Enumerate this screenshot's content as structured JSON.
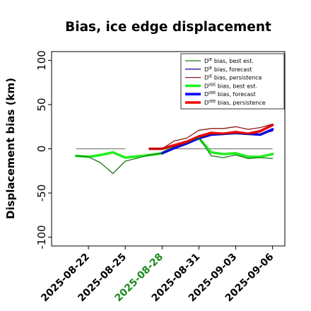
{
  "chart_data": {
    "type": "line",
    "title": "Bias, ice edge displacement",
    "ylabel": "Displacement bias (km)",
    "xlabel": "",
    "ylim": [
      -110,
      110
    ],
    "yticks": [
      -100,
      -50,
      0,
      50,
      100
    ],
    "xlim": [
      "2025-08-19",
      "2025-09-07"
    ],
    "xticks": [
      {
        "date": "2025-08-22",
        "label": "2025-08-22",
        "color": "#000000"
      },
      {
        "date": "2025-08-25",
        "label": "2025-08-25",
        "color": "#000000"
      },
      {
        "date": "2025-08-28",
        "label": "2025-08-28",
        "color": "#1a8a1a"
      },
      {
        "date": "2025-08-31",
        "label": "2025-08-31",
        "color": "#000000"
      },
      {
        "date": "2025-09-03",
        "label": "2025-09-03",
        "color": "#000000"
      },
      {
        "date": "2025-09-06",
        "label": "2025-09-06",
        "color": "#000000"
      }
    ],
    "legend_placement": "top-right",
    "reference_lines": [
      {
        "from": "2025-08-21",
        "to": "2025-08-25",
        "y": 0,
        "color": "#808080"
      },
      {
        "from": "2025-08-28",
        "to": "2025-09-06",
        "y": 0,
        "color": "#808080"
      }
    ],
    "connector": {
      "from": [
        "2025-08-25",
        -14
      ],
      "to": [
        "2025-08-27",
        -7
      ],
      "color": "#7a9a7a"
    },
    "series": [
      {
        "name": "D^IE bias, best est.",
        "legend_main": "D",
        "legend_sup": "IE",
        "legend_rest": " bias, best est.",
        "color": "#1a7a1a",
        "width": 1.3,
        "x": [
          "2025-08-21",
          "2025-08-22",
          "2025-08-23",
          "2025-08-24",
          "2025-08-25",
          "2025-08-27",
          "2025-08-28",
          "2025-08-29",
          "2025-08-30",
          "2025-08-31",
          "2025-09-01",
          "2025-09-02",
          "2025-09-03",
          "2025-09-04",
          "2025-09-05",
          "2025-09-06"
        ],
        "y": [
          -8,
          -9,
          -16,
          -28,
          -14,
          -7,
          -5,
          2,
          6,
          13,
          -8,
          -10,
          -7,
          -11,
          -10,
          -11
        ]
      },
      {
        "name": "D^IE bias, forecast",
        "legend_main": "D",
        "legend_sup": "IE",
        "legend_rest": " bias, forecast",
        "color": "#1a1aa0",
        "width": 1.3,
        "x": [
          "2025-08-28",
          "2025-08-29",
          "2025-08-30",
          "2025-08-31",
          "2025-09-01",
          "2025-09-02",
          "2025-09-03",
          "2025-09-04",
          "2025-09-05",
          "2025-09-06"
        ],
        "y": [
          -5,
          2,
          6,
          12,
          16,
          16,
          17,
          16,
          17,
          20
        ]
      },
      {
        "name": "D^IE bias, persistence",
        "legend_main": "D",
        "legend_sup": "IE",
        "legend_rest": " bias, persistence",
        "color": "#8b1a1a",
        "width": 1.3,
        "x": [
          "2025-08-27",
          "2025-08-28",
          "2025-08-29",
          "2025-08-30",
          "2025-08-31",
          "2025-09-01",
          "2025-09-02",
          "2025-09-03",
          "2025-09-04",
          "2025-09-05",
          "2025-09-06"
        ],
        "y": [
          0,
          0,
          9,
          12,
          21,
          23,
          23,
          25,
          22,
          24,
          28
        ]
      },
      {
        "name": "D^IIEE bias, best est.",
        "legend_main": "D",
        "legend_sup": "IIEE",
        "legend_rest": " bias, best est.",
        "color": "#22ee22",
        "width": 3.6,
        "x": [
          "2025-08-21",
          "2025-08-22",
          "2025-08-23",
          "2025-08-24",
          "2025-08-25",
          "2025-08-27",
          "2025-08-28",
          "2025-08-29",
          "2025-08-30",
          "2025-08-31",
          "2025-09-01",
          "2025-09-02",
          "2025-09-03",
          "2025-09-04",
          "2025-09-05",
          "2025-09-06"
        ],
        "y": [
          -8,
          -9,
          -7,
          -4,
          -10,
          -7,
          -5,
          3,
          7,
          12,
          -4,
          -6,
          -5,
          -9,
          -9,
          -6
        ]
      },
      {
        "name": "D^IIEE bias, forecast",
        "legend_main": "D",
        "legend_sup": "IIEE",
        "legend_rest": " bias, forecast",
        "color": "#0000ff",
        "width": 3.6,
        "x": [
          "2025-08-28",
          "2025-08-29",
          "2025-08-30",
          "2025-08-31",
          "2025-09-01",
          "2025-09-02",
          "2025-09-03",
          "2025-09-04",
          "2025-09-05",
          "2025-09-06"
        ],
        "y": [
          -5,
          1,
          6,
          12,
          16,
          17,
          18,
          17,
          16,
          22
        ]
      },
      {
        "name": "D^IIEE bias, persistence",
        "legend_main": "D",
        "legend_sup": "IIEE",
        "legend_rest": " bias, persistence",
        "color": "#ee0000",
        "width": 3.6,
        "x": [
          "2025-08-27",
          "2025-08-28",
          "2025-08-29",
          "2025-08-30",
          "2025-08-31",
          "2025-09-01",
          "2025-09-02",
          "2025-09-03",
          "2025-09-04",
          "2025-09-05",
          "2025-09-06"
        ],
        "y": [
          0,
          0,
          4,
          8,
          14,
          18,
          17,
          19,
          17,
          20,
          27
        ]
      }
    ]
  }
}
